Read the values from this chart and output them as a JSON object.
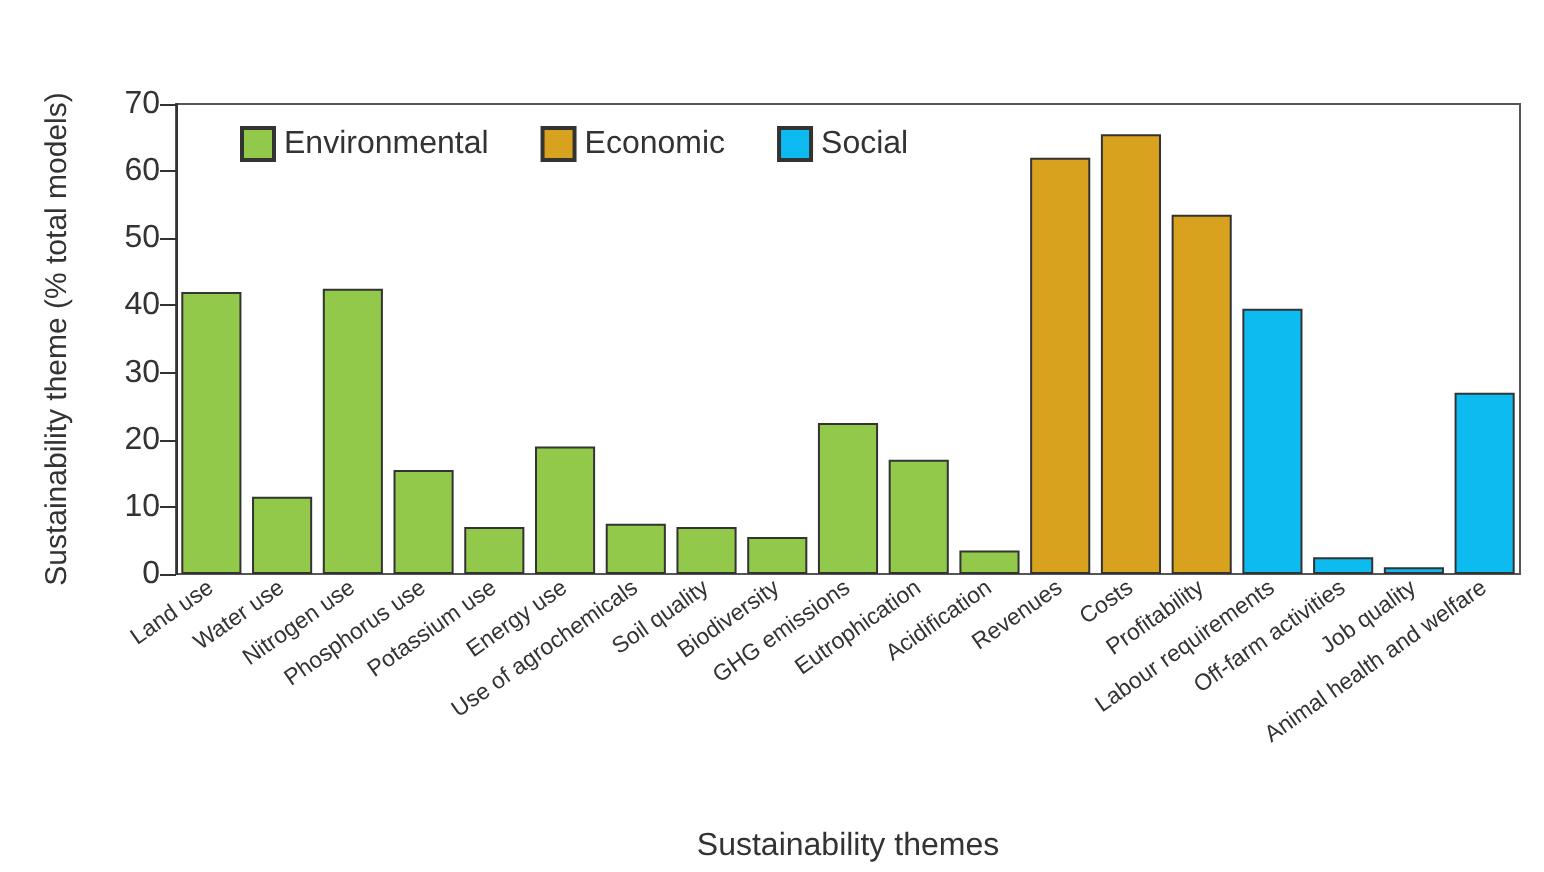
{
  "chart_data": {
    "type": "bar",
    "xlabel": "Sustainability themes",
    "ylabel": "Sustainability theme (% total models)",
    "categories": [
      "Land use",
      "Water use",
      "Nitrogen use",
      "Phosphorus use",
      "Potassium use",
      "Energy use",
      "Use of agrochemicals",
      "Soil quality",
      "Biodiversity",
      "GHG emissions",
      "Eutrophication",
      "Acidification",
      "Revenues",
      "Costs",
      "Profitability",
      "Labour requirements",
      "Off-farm activities",
      "Job quality",
      "Animal health and welfare"
    ],
    "series": [
      {
        "name": "Environmental",
        "color": "#92c94a",
        "values": [
          42,
          11.5,
          42.5,
          15.5,
          7,
          19,
          7.5,
          7,
          5.5,
          22.5,
          17,
          3.5,
          null,
          null,
          null,
          null,
          null,
          null,
          null
        ]
      },
      {
        "name": "Economic",
        "color": "#d9a21e",
        "values": [
          null,
          null,
          null,
          null,
          null,
          null,
          null,
          null,
          null,
          null,
          null,
          null,
          62,
          65.5,
          53.5,
          null,
          null,
          null,
          null
        ]
      },
      {
        "name": "Social",
        "color": "#0dbbf0",
        "values": [
          null,
          null,
          null,
          null,
          null,
          null,
          null,
          null,
          null,
          null,
          null,
          null,
          null,
          null,
          null,
          39.5,
          2.5,
          1,
          27
        ]
      }
    ],
    "ylim": [
      0,
      70
    ],
    "yticks": [
      0,
      10,
      20,
      30,
      40,
      50,
      60,
      70
    ],
    "grid": false,
    "legend": "top left"
  }
}
